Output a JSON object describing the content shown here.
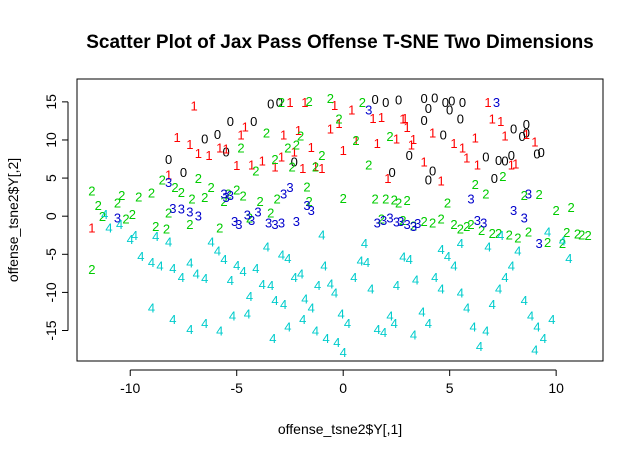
{
  "chart_data": {
    "type": "scatter",
    "title": "Scatter Plot of Jax Pass Offense T-SNE Two Dimensions",
    "xlabel": "offense_tsne2$Y[,1]",
    "ylabel": "offense_tsne2$Y[,2]",
    "xlim": [
      -12.5,
      12.2
    ],
    "ylim": [
      -19,
      18
    ],
    "xticks": [
      -10,
      -5,
      0,
      5,
      10
    ],
    "yticks": [
      -15,
      -10,
      -5,
      0,
      5,
      10,
      15
    ],
    "grid": false,
    "marker": "cluster label glyph",
    "series": [
      {
        "name": "0",
        "color": "#000000",
        "points": [
          [
            -8.2,
            7.5
          ],
          [
            -7.5,
            5.8
          ],
          [
            -6.5,
            10.2
          ],
          [
            -5.9,
            10.8
          ],
          [
            -5.3,
            12.5
          ],
          [
            -5.5,
            8.5
          ],
          [
            -3.4,
            14.8
          ],
          [
            -3.0,
            15.0
          ],
          [
            -2.3,
            7.2
          ],
          [
            1.5,
            15.4
          ],
          [
            2.0,
            15.0
          ],
          [
            2.6,
            15.3
          ],
          [
            3.8,
            15.5
          ],
          [
            3.8,
            12.6
          ],
          [
            4.0,
            14.2
          ],
          [
            4.3,
            15.6
          ],
          [
            4.8,
            15.0
          ],
          [
            5.1,
            15.2
          ],
          [
            5.6,
            15.0
          ],
          [
            5.5,
            12.8
          ],
          [
            5.0,
            14.0
          ],
          [
            4.7,
            10.7
          ],
          [
            4.2,
            6.0
          ],
          [
            4.0,
            4.8
          ],
          [
            6.7,
            7.8
          ],
          [
            7.1,
            5.0
          ],
          [
            7.3,
            7.4
          ],
          [
            7.6,
            7.3
          ],
          [
            7.9,
            8.0
          ],
          [
            8.0,
            11.5
          ],
          [
            8.6,
            12.1
          ],
          [
            8.6,
            11.0
          ],
          [
            9.1,
            8.2
          ],
          [
            9.3,
            8.4
          ],
          [
            8.4,
            10.5
          ],
          [
            3.1,
            8.0
          ],
          [
            2.3,
            5.8
          ],
          [
            -4.2,
            12.5
          ]
        ]
      },
      {
        "name": "1",
        "color": "#ff0000",
        "points": [
          [
            -11.8,
            -1.5
          ],
          [
            -8.2,
            5.5
          ],
          [
            -7.8,
            10.4
          ],
          [
            -7.0,
            14.5
          ],
          [
            -7.2,
            9.5
          ],
          [
            -6.8,
            8.3
          ],
          [
            -6.3,
            8.0
          ],
          [
            -5.8,
            9.0
          ],
          [
            -5.5,
            8.9
          ],
          [
            -5.0,
            6.7
          ],
          [
            -4.8,
            10.7
          ],
          [
            -4.6,
            11.8
          ],
          [
            -4.3,
            6.8
          ],
          [
            -3.8,
            7.3
          ],
          [
            -3.2,
            6.5
          ],
          [
            -2.9,
            7.8
          ],
          [
            -2.8,
            10.7
          ],
          [
            -2.5,
            15.0
          ],
          [
            -2.3,
            8.5
          ],
          [
            -2.1,
            11.3
          ],
          [
            -1.9,
            6.3
          ],
          [
            -1.8,
            15.0
          ],
          [
            -1.5,
            9.1
          ],
          [
            -1.3,
            6.6
          ],
          [
            -1.0,
            6.3
          ],
          [
            -0.6,
            11.5
          ],
          [
            -0.4,
            14.6
          ],
          [
            -0.2,
            12.2
          ],
          [
            0.0,
            8.7
          ],
          [
            0.4,
            14.0
          ],
          [
            0.6,
            10.0
          ],
          [
            1.4,
            12.9
          ],
          [
            1.6,
            9.6
          ],
          [
            1.8,
            13.0
          ],
          [
            2.5,
            10.2
          ],
          [
            2.9,
            12.9
          ],
          [
            3.0,
            11.7
          ],
          [
            3.2,
            9.4
          ],
          [
            3.3,
            10.1
          ],
          [
            2.1,
            5.0
          ],
          [
            3.8,
            7.2
          ],
          [
            4.2,
            11.0
          ],
          [
            4.6,
            4.7
          ],
          [
            5.2,
            9.6
          ],
          [
            5.6,
            9.0
          ],
          [
            5.8,
            7.7
          ],
          [
            6.2,
            10.3
          ],
          [
            6.8,
            15.0
          ],
          [
            7.0,
            12.8
          ],
          [
            7.4,
            12.5
          ],
          [
            7.6,
            10.6
          ],
          [
            7.9,
            6.8
          ],
          [
            8.1,
            6.9
          ],
          [
            8.6,
            10.8
          ],
          [
            9.0,
            9.8
          ],
          [
            6.3,
            6.8
          ],
          [
            2.8,
            12.8
          ]
        ]
      },
      {
        "name": "2",
        "color": "#00cc00",
        "points": [
          [
            -11.8,
            3.4
          ],
          [
            -11.5,
            1.5
          ],
          [
            -11.3,
            0.0
          ],
          [
            -10.6,
            1.8
          ],
          [
            -10.4,
            2.8
          ],
          [
            -10.2,
            -0.3
          ],
          [
            -9.9,
            0.3
          ],
          [
            -9.6,
            2.6
          ],
          [
            -9.0,
            3.1
          ],
          [
            -8.8,
            -1.3
          ],
          [
            -8.5,
            4.8
          ],
          [
            -8.3,
            -1.6
          ],
          [
            -8.2,
            0.5
          ],
          [
            -7.9,
            3.8
          ],
          [
            -7.6,
            3.2
          ],
          [
            -7.2,
            -1.0
          ],
          [
            -7.1,
            2.3
          ],
          [
            -6.8,
            5.0
          ],
          [
            -6.5,
            2.5
          ],
          [
            -6.2,
            3.8
          ],
          [
            -5.8,
            -1.5
          ],
          [
            -5.6,
            2.0
          ],
          [
            -5.4,
            3.0
          ],
          [
            -5.0,
            3.5
          ],
          [
            -4.8,
            9.0
          ],
          [
            -4.7,
            2.7
          ],
          [
            -4.4,
            -0.2
          ],
          [
            -4.1,
            6.0
          ],
          [
            -3.9,
            2.0
          ],
          [
            -3.6,
            11.0
          ],
          [
            -3.4,
            0.5
          ],
          [
            -3.2,
            7.5
          ],
          [
            -3.1,
            2.3
          ],
          [
            -2.9,
            15.0
          ],
          [
            -2.6,
            9.0
          ],
          [
            -2.4,
            6.5
          ],
          [
            -2.2,
            9.4
          ],
          [
            -2.0,
            10.6
          ],
          [
            -1.7,
            3.9
          ],
          [
            -1.6,
            2.0
          ],
          [
            -1.6,
            15.1
          ],
          [
            -1.3,
            6.5
          ],
          [
            -1.0,
            8.0
          ],
          [
            -0.6,
            15.5
          ],
          [
            -0.2,
            12.8
          ],
          [
            0.0,
            2.4
          ],
          [
            0.6,
            10.0
          ],
          [
            0.9,
            15.0
          ],
          [
            1.2,
            6.8
          ],
          [
            1.5,
            2.3
          ],
          [
            1.8,
            -0.3
          ],
          [
            2.0,
            2.3
          ],
          [
            2.2,
            10.5
          ],
          [
            2.4,
            2.2
          ],
          [
            2.6,
            1.8
          ],
          [
            2.8,
            -0.5
          ],
          [
            3.0,
            2.1
          ],
          [
            3.3,
            -1.2
          ],
          [
            3.8,
            -0.6
          ],
          [
            4.2,
            -0.8
          ],
          [
            4.6,
            -0.3
          ],
          [
            4.9,
            1.8
          ],
          [
            5.2,
            -1.0
          ],
          [
            5.5,
            -1.6
          ],
          [
            5.8,
            -1.3
          ],
          [
            6.0,
            -1.0
          ],
          [
            6.2,
            4.2
          ],
          [
            6.5,
            -1.8
          ],
          [
            6.7,
            3.0
          ],
          [
            7.0,
            -2.2
          ],
          [
            7.3,
            -2.2
          ],
          [
            7.5,
            5.3
          ],
          [
            7.8,
            -2.4
          ],
          [
            8.2,
            -2.8
          ],
          [
            8.5,
            2.8
          ],
          [
            8.7,
            -2.0
          ],
          [
            9.2,
            2.9
          ],
          [
            9.6,
            -3.4
          ],
          [
            10.0,
            0.8
          ],
          [
            10.3,
            -3.5
          ],
          [
            10.5,
            -2.1
          ],
          [
            10.7,
            1.2
          ],
          [
            11.0,
            -2.3
          ],
          [
            11.2,
            -2.4
          ],
          [
            11.5,
            -2.5
          ],
          [
            -11.8,
            -6.9
          ]
        ]
      },
      {
        "name": "3",
        "color": "#0000cc",
        "points": [
          [
            -10.6,
            -0.2
          ],
          [
            -8.2,
            4.5
          ],
          [
            -8.0,
            1.1
          ],
          [
            -7.6,
            1.0
          ],
          [
            -7.2,
            0.6
          ],
          [
            -6.8,
            0.1
          ],
          [
            -5.6,
            3.0
          ],
          [
            -5.5,
            2.5
          ],
          [
            -5.3,
            2.8
          ],
          [
            -5.1,
            -0.6
          ],
          [
            -4.9,
            -1.0
          ],
          [
            -4.5,
            0.2
          ],
          [
            -4.3,
            -0.5
          ],
          [
            -4.0,
            0.6
          ],
          [
            -3.5,
            -0.8
          ],
          [
            -3.2,
            -1.0
          ],
          [
            -2.9,
            -0.8
          ],
          [
            -2.8,
            3.0
          ],
          [
            -2.5,
            3.8
          ],
          [
            -2.2,
            -0.6
          ],
          [
            -1.7,
            1.5
          ],
          [
            -1.5,
            0.8
          ],
          [
            1.2,
            14.0
          ],
          [
            1.6,
            -0.8
          ],
          [
            1.9,
            -0.5
          ],
          [
            2.2,
            -0.2
          ],
          [
            2.5,
            -0.7
          ],
          [
            2.7,
            -0.6
          ],
          [
            3.0,
            -1.0
          ],
          [
            3.3,
            -1.3
          ],
          [
            3.5,
            -0.9
          ],
          [
            6.0,
            2.3
          ],
          [
            6.3,
            -0.5
          ],
          [
            6.6,
            -0.8
          ],
          [
            7.2,
            15.0
          ],
          [
            8.0,
            0.8
          ],
          [
            8.5,
            -0.2
          ],
          [
            8.7,
            3.0
          ],
          [
            9.2,
            -3.5
          ]
        ]
      },
      {
        "name": "4",
        "color": "#00cccc",
        "points": [
          [
            -11.2,
            0.3
          ],
          [
            -10.5,
            -1.0
          ],
          [
            -10.0,
            -3.0
          ],
          [
            -9.8,
            -2.5
          ],
          [
            -9.5,
            -5.2
          ],
          [
            -9.0,
            -6.0
          ],
          [
            -8.6,
            -6.5
          ],
          [
            -8.2,
            -3.3
          ],
          [
            -8.0,
            -6.8
          ],
          [
            -7.6,
            -8.0
          ],
          [
            -7.2,
            -6.1
          ],
          [
            -6.9,
            -7.5
          ],
          [
            -6.5,
            -8.1
          ],
          [
            -6.2,
            -3.3
          ],
          [
            -5.9,
            -4.5
          ],
          [
            -5.6,
            -5.6
          ],
          [
            -5.3,
            -8.4
          ],
          [
            -5.0,
            -6.4
          ],
          [
            -4.7,
            -7.2
          ],
          [
            -4.4,
            -10.5
          ],
          [
            -4.1,
            -6.8
          ],
          [
            -3.8,
            -8.9
          ],
          [
            -3.4,
            -9.0
          ],
          [
            -3.2,
            -11.0
          ],
          [
            -2.9,
            -5.0
          ],
          [
            -2.6,
            -5.5
          ],
          [
            -2.3,
            -8.0
          ],
          [
            -2.0,
            -7.5
          ],
          [
            -1.8,
            -10.8
          ],
          [
            -1.5,
            -12.0
          ],
          [
            -1.2,
            -9.0
          ],
          [
            -0.9,
            -6.5
          ],
          [
            -0.6,
            -8.8
          ],
          [
            -0.4,
            -10.0
          ],
          [
            -0.1,
            -12.8
          ],
          [
            0.2,
            -14.0
          ],
          [
            0.5,
            -8.0
          ],
          [
            0.8,
            -5.8
          ],
          [
            1.1,
            -6.0
          ],
          [
            1.3,
            -9.5
          ],
          [
            1.6,
            -14.8
          ],
          [
            1.9,
            -15.2
          ],
          [
            2.2,
            -13.0
          ],
          [
            2.5,
            -9.0
          ],
          [
            2.8,
            -5.3
          ],
          [
            3.1,
            -5.6
          ],
          [
            3.4,
            -8.3
          ],
          [
            3.7,
            -12.5
          ],
          [
            4.0,
            -14.0
          ],
          [
            4.3,
            -8.0
          ],
          [
            4.6,
            -9.5
          ],
          [
            4.9,
            -5.2
          ],
          [
            5.2,
            -6.5
          ],
          [
            5.5,
            -10.0
          ],
          [
            5.8,
            -12.0
          ],
          [
            6.1,
            -14.5
          ],
          [
            6.4,
            -17.0
          ],
          [
            6.7,
            -15.0
          ],
          [
            7.0,
            -11.5
          ],
          [
            7.3,
            -9.5
          ],
          [
            7.6,
            -8.0
          ],
          [
            7.9,
            -6.5
          ],
          [
            8.2,
            -4.5
          ],
          [
            8.5,
            -11.0
          ],
          [
            8.8,
            -13.0
          ],
          [
            9.1,
            -14.5
          ],
          [
            9.4,
            -16.0
          ],
          [
            9.8,
            -13.5
          ],
          [
            10.3,
            -3.2
          ],
          [
            10.6,
            -5.5
          ],
          [
            9.0,
            -17.5
          ],
          [
            -9.0,
            -12.0
          ],
          [
            -8.0,
            -13.5
          ],
          [
            -7.2,
            -14.8
          ],
          [
            -6.5,
            -14.0
          ],
          [
            -5.8,
            -15.0
          ],
          [
            -5.2,
            -13.0
          ],
          [
            -4.5,
            -12.8
          ],
          [
            -3.3,
            -16.0
          ],
          [
            -2.6,
            -14.5
          ],
          [
            -1.9,
            -13.5
          ],
          [
            -1.3,
            -15.0
          ],
          [
            -0.8,
            -16.0
          ],
          [
            -0.3,
            -16.5
          ],
          [
            0.0,
            -17.8
          ],
          [
            -2.8,
            -11.5
          ],
          [
            3.3,
            -15.5
          ],
          [
            2.4,
            -14.0
          ],
          [
            4.6,
            -4.3
          ],
          [
            5.5,
            -3.5
          ],
          [
            6.8,
            -4.0
          ],
          [
            7.4,
            -2.5
          ],
          [
            9.6,
            -2.0
          ],
          [
            -3.6,
            -4.0
          ],
          [
            -1.0,
            -2.4
          ],
          [
            1.0,
            -3.5
          ],
          [
            -11.0,
            -1.5
          ],
          [
            -8.8,
            -2.6
          ]
        ]
      }
    ]
  }
}
